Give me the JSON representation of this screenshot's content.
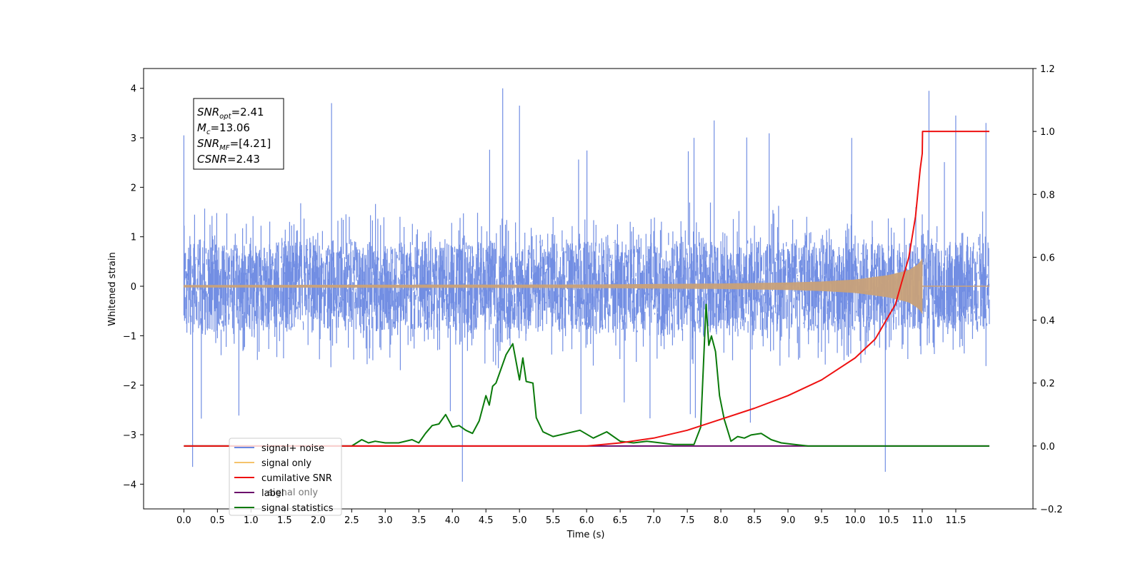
{
  "chart_data": {
    "type": "line",
    "xlabel": "Time (s)",
    "ylabel": "Whitened strain",
    "xlim": [
      -0.6,
      12.65
    ],
    "ylim": [
      -4.5,
      4.4
    ],
    "y2lim": [
      -0.2,
      1.2
    ],
    "x_ticks": [
      "0.0",
      "0.5",
      "1.0",
      "1.5",
      "2.0",
      "2.5",
      "3.0",
      "3.5",
      "4.0",
      "4.5",
      "5.0",
      "5.5",
      "6.0",
      "6.5",
      "7.0",
      "7.5",
      "8.0",
      "8.5",
      "9.0",
      "9.5",
      "10.0",
      "10.5",
      "11.0",
      "11.5"
    ],
    "y_ticks": [
      4,
      3,
      2,
      1,
      0,
      -1,
      -2,
      -3,
      -4
    ],
    "y2_ticks": [
      "1.2",
      "1.0",
      "0.8",
      "0.6",
      "0.4",
      "0.2",
      "0.0",
      "−0.2"
    ],
    "stats_box": [
      {
        "sym": "SNR",
        "sub": "opt",
        "val": "=2.41"
      },
      {
        "sym": "M",
        "sub": "c",
        "val": "=13.06"
      },
      {
        "sym": "SNR",
        "sub": "MF",
        "val": "=[4.21]"
      },
      {
        "sym": "CSNR",
        "sub": "",
        "val": "=2.43"
      }
    ],
    "legend": {
      "position": "lower-left",
      "entries": [
        {
          "label": "signal+ noise",
          "color": "#6a88e2"
        },
        {
          "label": "signal only",
          "color": "#f5c36b"
        },
        {
          "label": "cumilative SNR",
          "color": "#ee1111"
        },
        {
          "label": "label",
          "color": "#6b0a6b"
        },
        {
          "label": "signal statistics",
          "color": "#0a7a0a"
        }
      ],
      "hidden_text": "signal only"
    },
    "series": [
      {
        "name": "signal+ noise",
        "axis": "left",
        "color": "#6a88e2",
        "x_range": [
          0.0,
          12.0
        ],
        "typical_range": [
          -2.0,
          2.4
        ],
        "extremes": [
          {
            "x": 0.0,
            "y": 3.05
          },
          {
            "x": 0.13,
            "y": -3.65
          },
          {
            "x": 2.2,
            "y": 3.7
          },
          {
            "x": 4.15,
            "y": -3.95
          },
          {
            "x": 4.75,
            "y": 4.0
          },
          {
            "x": 5.0,
            "y": 3.65
          },
          {
            "x": 7.6,
            "y": 3.0
          },
          {
            "x": 7.9,
            "y": 3.35
          },
          {
            "x": 10.45,
            "y": -3.75
          },
          {
            "x": 11.1,
            "y": 3.95
          },
          {
            "x": 11.5,
            "y": 3.45
          },
          {
            "x": 11.95,
            "y": 3.3
          }
        ]
      },
      {
        "name": "signal only",
        "axis": "left",
        "color": "#c9a27a",
        "chirp_end": 11.0,
        "envelope": [
          [
            0.0,
            0.02
          ],
          [
            6.0,
            0.03
          ],
          [
            8.0,
            0.05
          ],
          [
            9.0,
            0.07
          ],
          [
            9.5,
            0.09
          ],
          [
            10.0,
            0.13
          ],
          [
            10.5,
            0.22
          ],
          [
            10.8,
            0.32
          ],
          [
            10.95,
            0.45
          ],
          [
            11.0,
            0.55
          ]
        ]
      },
      {
        "name": "cumilative SNR",
        "axis": "right",
        "color": "#ee1111",
        "x": [
          0.0,
          6.0,
          6.5,
          7.0,
          7.5,
          8.0,
          8.5,
          9.0,
          9.5,
          10.0,
          10.3,
          10.6,
          10.8,
          10.9,
          10.97,
          11.0,
          11.005,
          12.0
        ],
        "values": [
          0.0,
          0.0,
          0.01,
          0.025,
          0.05,
          0.085,
          0.12,
          0.16,
          0.21,
          0.28,
          0.34,
          0.45,
          0.6,
          0.73,
          0.88,
          0.93,
          1.0,
          1.0
        ]
      },
      {
        "name": "label",
        "axis": "right",
        "color": "#6b0a6b",
        "x": [
          0.0,
          12.0
        ],
        "values": [
          0.0,
          0.0
        ]
      },
      {
        "name": "signal statistics",
        "axis": "right",
        "color": "#0a7a0a",
        "x": [
          0.0,
          2.5,
          2.65,
          2.75,
          2.85,
          3.0,
          3.2,
          3.4,
          3.5,
          3.6,
          3.7,
          3.8,
          3.9,
          4.0,
          4.1,
          4.2,
          4.3,
          4.4,
          4.5,
          4.55,
          4.6,
          4.65,
          4.7,
          4.8,
          4.9,
          5.0,
          5.05,
          5.1,
          5.2,
          5.25,
          5.35,
          5.5,
          5.7,
          5.9,
          6.1,
          6.3,
          6.5,
          6.7,
          6.9,
          7.1,
          7.3,
          7.5,
          7.6,
          7.7,
          7.78,
          7.82,
          7.86,
          7.92,
          7.98,
          8.05,
          8.15,
          8.25,
          8.35,
          8.45,
          8.6,
          8.75,
          8.9,
          9.1,
          9.3,
          9.5,
          12.0
        ],
        "values": [
          0.0,
          0.0,
          0.02,
          0.01,
          0.015,
          0.01,
          0.01,
          0.02,
          0.01,
          0.04,
          0.065,
          0.07,
          0.1,
          0.06,
          0.065,
          0.05,
          0.04,
          0.08,
          0.16,
          0.13,
          0.19,
          0.2,
          0.23,
          0.29,
          0.325,
          0.21,
          0.28,
          0.205,
          0.2,
          0.09,
          0.045,
          0.03,
          0.04,
          0.05,
          0.025,
          0.045,
          0.015,
          0.01,
          0.015,
          0.01,
          0.005,
          0.005,
          0.005,
          0.06,
          0.45,
          0.32,
          0.35,
          0.3,
          0.16,
          0.085,
          0.015,
          0.03,
          0.025,
          0.035,
          0.04,
          0.02,
          0.01,
          0.005,
          0.0,
          0.0,
          0.0
        ]
      }
    ]
  }
}
